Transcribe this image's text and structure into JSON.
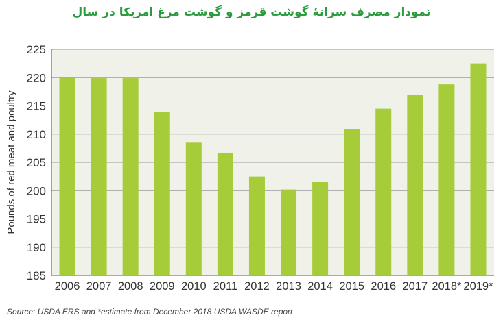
{
  "chart_data": {
    "type": "bar",
    "title": "نمودار مصرف سرانهٔ گوشت قرمز و گوشت مرغ امریکا  در سال",
    "xlabel": "",
    "ylabel": "Pounds of red meat and poultry",
    "ylim": [
      185,
      225
    ],
    "yticks": [
      185,
      190,
      195,
      200,
      205,
      210,
      215,
      220,
      225
    ],
    "categories": [
      "2006",
      "2007",
      "2008",
      "2009",
      "2010",
      "2011",
      "2012",
      "2013",
      "2014",
      "2015",
      "2016",
      "2017",
      "2018*",
      "2019*"
    ],
    "values": [
      220.0,
      219.9,
      219.9,
      213.9,
      208.6,
      206.7,
      202.5,
      200.2,
      201.6,
      210.9,
      214.5,
      216.9,
      218.8,
      222.5
    ],
    "grid": true,
    "legend": "none",
    "bar_color": "#a6cc3a",
    "source": "Source: USDA ERS and *estimate from December 2018 USDA WASDE report"
  }
}
